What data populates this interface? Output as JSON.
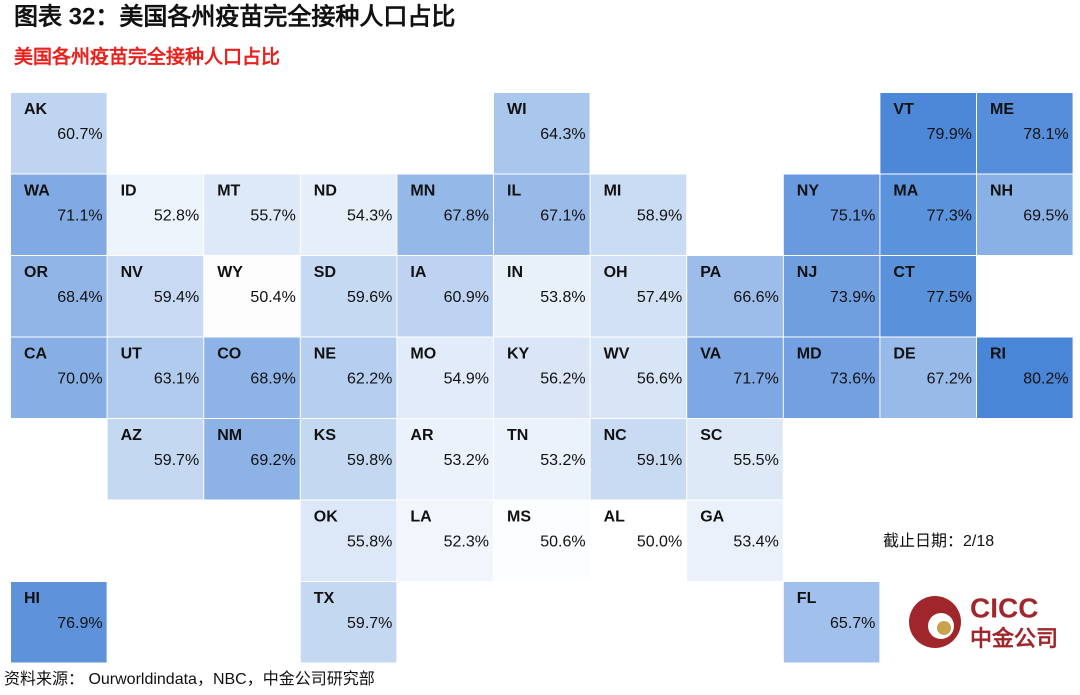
{
  "chart_data": {
    "type": "tilemap",
    "title": "图表 32：美国各州疫苗完全接种人口占比",
    "subtitle": "美国各州疫苗完全接种人口占比",
    "annotation": "截止日期：2/18",
    "source": "资料来源： Ourworldindata，NBC，中金公司研究部",
    "logo": [
      "CICC",
      "中金公司"
    ],
    "colors": [
      "#ffffff",
      "#4a86d8"
    ],
    "categories": [
      "AK",
      "WI",
      "VT",
      "ME",
      "WA",
      "ID",
      "MT",
      "ND",
      "MN",
      "IL",
      "MI",
      "NY",
      "MA",
      "NH",
      "OR",
      "NV",
      "WY",
      "SD",
      "IA",
      "IN",
      "OH",
      "PA",
      "NJ",
      "CT",
      "CA",
      "UT",
      "CO",
      "NE",
      "MO",
      "KY",
      "WV",
      "VA",
      "MD",
      "DE",
      "RI",
      "AZ",
      "NM",
      "KS",
      "AR",
      "TN",
      "NC",
      "SC",
      "OK",
      "LA",
      "MS",
      "AL",
      "GA",
      "HI",
      "TX",
      "FL"
    ],
    "values": [
      60.7,
      64.3,
      79.9,
      78.1,
      71.1,
      52.8,
      55.7,
      54.3,
      67.8,
      67.1,
      58.9,
      75.1,
      77.3,
      69.5,
      68.4,
      59.4,
      50.4,
      59.6,
      60.9,
      53.8,
      57.4,
      66.6,
      73.9,
      77.5,
      70.0,
      63.1,
      68.9,
      62.2,
      54.9,
      56.2,
      56.6,
      71.7,
      73.6,
      67.2,
      80.2,
      59.7,
      69.2,
      59.8,
      53.2,
      53.2,
      59.1,
      55.5,
      55.8,
      52.3,
      50.6,
      50.0,
      53.4,
      76.9,
      59.7,
      65.7
    ],
    "value_labels": [
      "60.7%",
      "64.3%",
      "79.9%",
      "78.1%",
      "71.1%",
      "52.8%",
      "55.7%",
      "54.3%",
      "67.8%",
      "67.1%",
      "58.9%",
      "75.1%",
      "77.3%",
      "69.5%",
      "68.4%",
      "59.4%",
      "50.4%",
      "59.6%",
      "60.9%",
      "53.8%",
      "57.4%",
      "66.6%",
      "73.9%",
      "77.5%",
      "70.0%",
      "63.1%",
      "68.9%",
      "62.2%",
      "54.9%",
      "56.2%",
      "56.6%",
      "71.7%",
      "73.6%",
      "67.2%",
      "80.2%",
      "59.7%",
      "69.2%",
      "59.8%",
      "53.2%",
      "53.2%",
      "59.1%",
      "55.5%",
      "55.8%",
      "52.3%",
      "50.6%",
      "50.0%",
      "53.4%",
      "76.9%",
      "59.7%",
      "65.7%"
    ]
  }
}
